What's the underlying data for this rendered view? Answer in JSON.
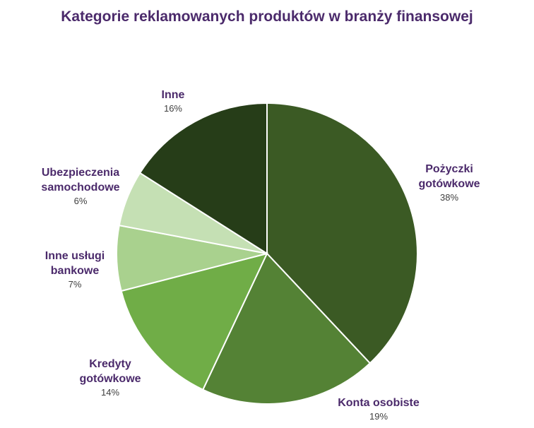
{
  "chart_data": {
    "type": "pie",
    "title": "Kategorie reklamowanych produktów w branży finansowej",
    "start_angle_deg": 0,
    "direction": "clockwise",
    "slices": [
      {
        "label": "Pożyczki gotówkowe",
        "value": 38,
        "value_label": "38%",
        "color": "#3b5a24"
      },
      {
        "label": "Konta osobiste",
        "value": 19,
        "value_label": "19%",
        "color": "#548235"
      },
      {
        "label": "Kredyty gotówkowe",
        "value": 14,
        "value_label": "14%",
        "color": "#70ad47"
      },
      {
        "label": "Inne usługi bankowe",
        "value": 7,
        "value_label": "7%",
        "color": "#a9d18e"
      },
      {
        "label": "Ubezpieczenia samochodowe",
        "value": 6,
        "value_label": "6%",
        "color": "#c5e0b4"
      },
      {
        "label": "Inne",
        "value": 16,
        "value_label": "16%",
        "color": "#263d18"
      }
    ]
  }
}
